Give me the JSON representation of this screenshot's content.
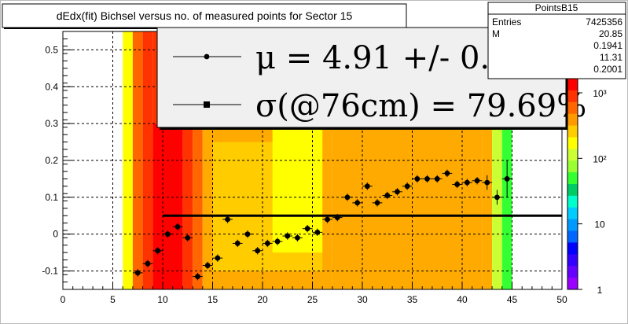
{
  "chart_data": {
    "type": "scatter",
    "title": "dEdx(fit) Bichsel versus no. of measured points for Sector 15",
    "xlim": [
      0,
      50
    ],
    "ylim": [
      -0.15,
      0.55
    ],
    "x_ticks": [
      "0",
      "5",
      "10",
      "15",
      "20",
      "25",
      "30",
      "35",
      "40",
      "45",
      "50"
    ],
    "y_ticks": [
      "-0.1",
      "0",
      "0.1",
      "0.2",
      "0.3",
      "0.4",
      "0.5"
    ],
    "grid": true,
    "stats_box": {
      "title": "PointsB15",
      "rows": [
        {
          "label": "Entries",
          "value": "7425356"
        },
        {
          "label": "M",
          "value": "20.85"
        },
        {
          "label": "",
          "value": "0.1941"
        },
        {
          "label": "",
          "value": "11.31"
        },
        {
          "label": "",
          "value": "0.2001"
        }
      ]
    },
    "legend": {
      "line1": "μ  =  4.91 +/-  0.20 %",
      "line2": "σ(@76cm) = 79.69%"
    },
    "color_scale": {
      "type": "log",
      "labels": [
        "1",
        "10",
        "10²",
        "10³"
      ],
      "colors": [
        "#ff0000",
        "#ff3300",
        "#ff6600",
        "#ff9900",
        "#ffcc00",
        "#ffff00",
        "#ccff33",
        "#99ff33",
        "#33ff33",
        "#00cc66",
        "#00ffcc",
        "#00ccff",
        "#0099ff",
        "#0066ff",
        "#0000ff",
        "#3300ff",
        "#6600ff",
        "#9900ff"
      ]
    },
    "heatmap_columns": [
      {
        "x0": 6,
        "x1": 7,
        "color": "#ffff00"
      },
      {
        "x0": 7,
        "x1": 8,
        "color": "#ff6600"
      },
      {
        "x0": 8,
        "x1": 9,
        "color": "#ff3300"
      },
      {
        "x0": 9,
        "x1": 12,
        "color": "#ff0000"
      },
      {
        "x0": 12,
        "x1": 13,
        "color": "#ff3300"
      },
      {
        "x0": 13,
        "x1": 14,
        "color": "#ff6600"
      },
      {
        "x0": 14,
        "x1": 27,
        "color": "#ffaa00"
      },
      {
        "x0": 27,
        "x1": 42,
        "color": "#ffaa00"
      },
      {
        "x0": 42,
        "x1": 43,
        "color": "#ffaa00"
      },
      {
        "x0": 43,
        "x1": 44,
        "color": "#ccff33"
      },
      {
        "x0": 44,
        "x1": 45,
        "color": "#33ff33"
      }
    ],
    "heatmap_cells": [
      {
        "x0": 6,
        "x1": 7,
        "y0": -0.15,
        "y1": 0.55,
        "color": "#ffff00"
      },
      {
        "x0": 7,
        "x1": 8,
        "y0": -0.15,
        "y1": 0.55,
        "color": "#ff6600"
      },
      {
        "x0": 8,
        "x1": 9,
        "y0": -0.15,
        "y1": 0.55,
        "color": "#ff3300"
      },
      {
        "x0": 9,
        "x1": 12,
        "y0": -0.15,
        "y1": 0.3,
        "color": "#ff0000"
      },
      {
        "x0": 9,
        "x1": 12,
        "y0": 0.3,
        "y1": 0.55,
        "color": "#ff3300"
      },
      {
        "x0": 12,
        "x1": 13,
        "y0": -0.15,
        "y1": 0.3,
        "color": "#ff3300"
      },
      {
        "x0": 13,
        "x1": 14,
        "y0": -0.15,
        "y1": 0.3,
        "color": "#ff6600"
      },
      {
        "x0": 14,
        "x1": 27,
        "y0": -0.15,
        "y1": 0.3,
        "color": "#ffaa00"
      },
      {
        "x0": 15,
        "x1": 26,
        "y0": -0.1,
        "y1": 0.25,
        "color": "#ffcc00"
      },
      {
        "x0": 21,
        "x1": 26,
        "y0": -0.05,
        "y1": 0.3,
        "color": "#ffff00"
      },
      {
        "x0": 27,
        "x1": 42,
        "y0": -0.15,
        "y1": 0.3,
        "color": "#ffaa00"
      },
      {
        "x0": 42,
        "x1": 43,
        "y0": -0.15,
        "y1": 0.3,
        "color": "#ffaa00"
      },
      {
        "x0": 43,
        "x1": 44,
        "y0": -0.15,
        "y1": 0.3,
        "color": "#ccff33"
      },
      {
        "x0": 44,
        "x1": 45,
        "y0": -0.15,
        "y1": 0.3,
        "color": "#33ff33"
      }
    ],
    "series": [
      {
        "points": [
          {
            "x": 7.5,
            "y": -0.105,
            "err": 0.01
          },
          {
            "x": 8.5,
            "y": -0.08,
            "err": 0.01
          },
          {
            "x": 9.5,
            "y": -0.045,
            "err": 0.01
          },
          {
            "x": 10.5,
            "y": 0.0,
            "err": 0.01
          },
          {
            "x": 11.5,
            "y": 0.02,
            "err": 0.01
          },
          {
            "x": 12.5,
            "y": -0.01,
            "err": 0.01
          },
          {
            "x": 13.5,
            "y": -0.115,
            "err": 0.01
          },
          {
            "x": 14.5,
            "y": -0.085,
            "err": 0.01
          },
          {
            "x": 15.5,
            "y": -0.065,
            "err": 0.01
          },
          {
            "x": 16.5,
            "y": 0.04,
            "err": 0.01
          },
          {
            "x": 17.5,
            "y": -0.025,
            "err": 0.01
          },
          {
            "x": 18.5,
            "y": 0.0,
            "err": 0.01
          },
          {
            "x": 19.5,
            "y": -0.045,
            "err": 0.01
          },
          {
            "x": 20.5,
            "y": -0.025,
            "err": 0.01
          },
          {
            "x": 21.5,
            "y": -0.02,
            "err": 0.01
          },
          {
            "x": 22.5,
            "y": -0.005,
            "err": 0.01
          },
          {
            "x": 23.5,
            "y": -0.01,
            "err": 0.01
          },
          {
            "x": 24.5,
            "y": 0.015,
            "err": 0.01
          },
          {
            "x": 25.5,
            "y": 0.005,
            "err": 0.01
          },
          {
            "x": 26.5,
            "y": 0.04,
            "err": 0.01
          },
          {
            "x": 27.5,
            "y": 0.045,
            "err": 0.01
          },
          {
            "x": 28.5,
            "y": 0.1,
            "err": 0.01
          },
          {
            "x": 29.5,
            "y": 0.085,
            "err": 0.01
          },
          {
            "x": 30.5,
            "y": 0.13,
            "err": 0.01
          },
          {
            "x": 31.5,
            "y": 0.085,
            "err": 0.01
          },
          {
            "x": 32.5,
            "y": 0.105,
            "err": 0.01
          },
          {
            "x": 33.5,
            "y": 0.115,
            "err": 0.01
          },
          {
            "x": 34.5,
            "y": 0.13,
            "err": 0.01
          },
          {
            "x": 35.5,
            "y": 0.15,
            "err": 0.01
          },
          {
            "x": 36.5,
            "y": 0.15,
            "err": 0.01
          },
          {
            "x": 37.5,
            "y": 0.15,
            "err": 0.01
          },
          {
            "x": 38.5,
            "y": 0.165,
            "err": 0.01
          },
          {
            "x": 39.5,
            "y": 0.135,
            "err": 0.01
          },
          {
            "x": 40.5,
            "y": 0.14,
            "err": 0.01
          },
          {
            "x": 41.5,
            "y": 0.145,
            "err": 0.01
          },
          {
            "x": 42.5,
            "y": 0.14,
            "err": 0.02
          },
          {
            "x": 43.5,
            "y": 0.1,
            "err": 0.02
          },
          {
            "x": 44.5,
            "y": 0.15,
            "err": 0.05
          }
        ]
      }
    ],
    "fit_line": {
      "x0": 10,
      "x1": 50,
      "y": 0.05
    }
  }
}
